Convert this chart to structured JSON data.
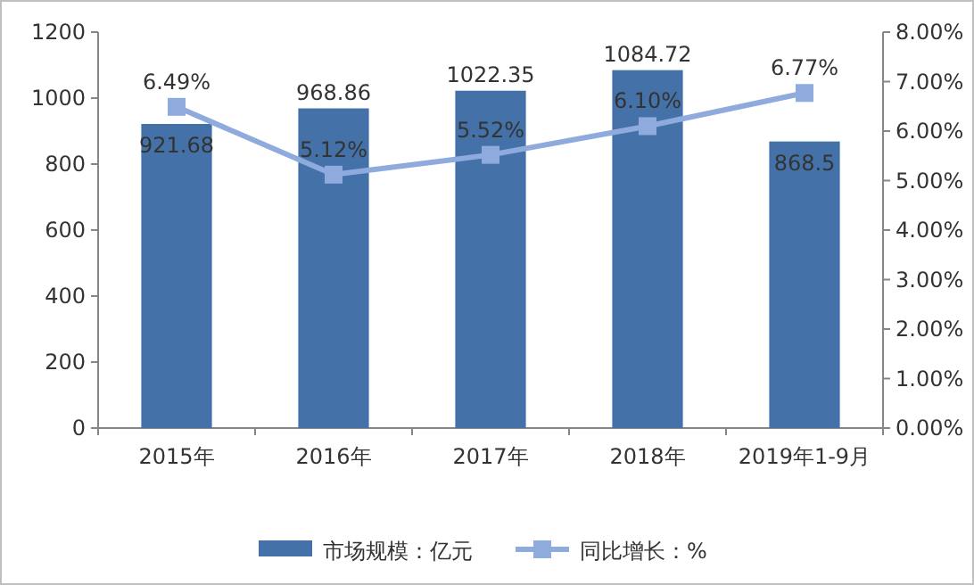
{
  "chart_data": {
    "type": "bar",
    "categories": [
      "2015年",
      "2016年",
      "2017年",
      "2018年",
      "2019年1-9月"
    ],
    "series": [
      {
        "name": "市场规模：亿元",
        "color": "#4472a8",
        "values": [
          921.68,
          968.86,
          1022.35,
          1084.72,
          868.5
        ],
        "value_labels": [
          "921.68",
          "968.86",
          "1022.35",
          "1084.72",
          "868.5"
        ]
      },
      {
        "name": "同比增长：%",
        "type": "line",
        "axis": "y2",
        "color": "#8faadc",
        "marker": "square",
        "values": [
          6.49,
          5.12,
          5.52,
          6.1,
          6.77
        ],
        "value_labels": [
          "6.49%",
          "5.12%",
          "5.52%",
          "6.10%",
          "6.77%"
        ]
      }
    ],
    "ylim": [
      0,
      1200
    ],
    "yticks": [
      0,
      200,
      400,
      600,
      800,
      1000,
      1200
    ],
    "y2lim": [
      0,
      8
    ],
    "y2ticks": [
      {
        "value": 0,
        "label": "0.00%"
      },
      {
        "value": 1,
        "label": "1.00%"
      },
      {
        "value": 2,
        "label": "2.00%"
      },
      {
        "value": 3,
        "label": "3.00%"
      },
      {
        "value": 4,
        "label": "4.00%"
      },
      {
        "value": 5,
        "label": "5.00%"
      },
      {
        "value": 6,
        "label": "6.00%"
      },
      {
        "value": 7,
        "label": "7.00%"
      },
      {
        "value": 8,
        "label": "8.00%"
      }
    ],
    "grid": false,
    "legend": "bottom"
  }
}
